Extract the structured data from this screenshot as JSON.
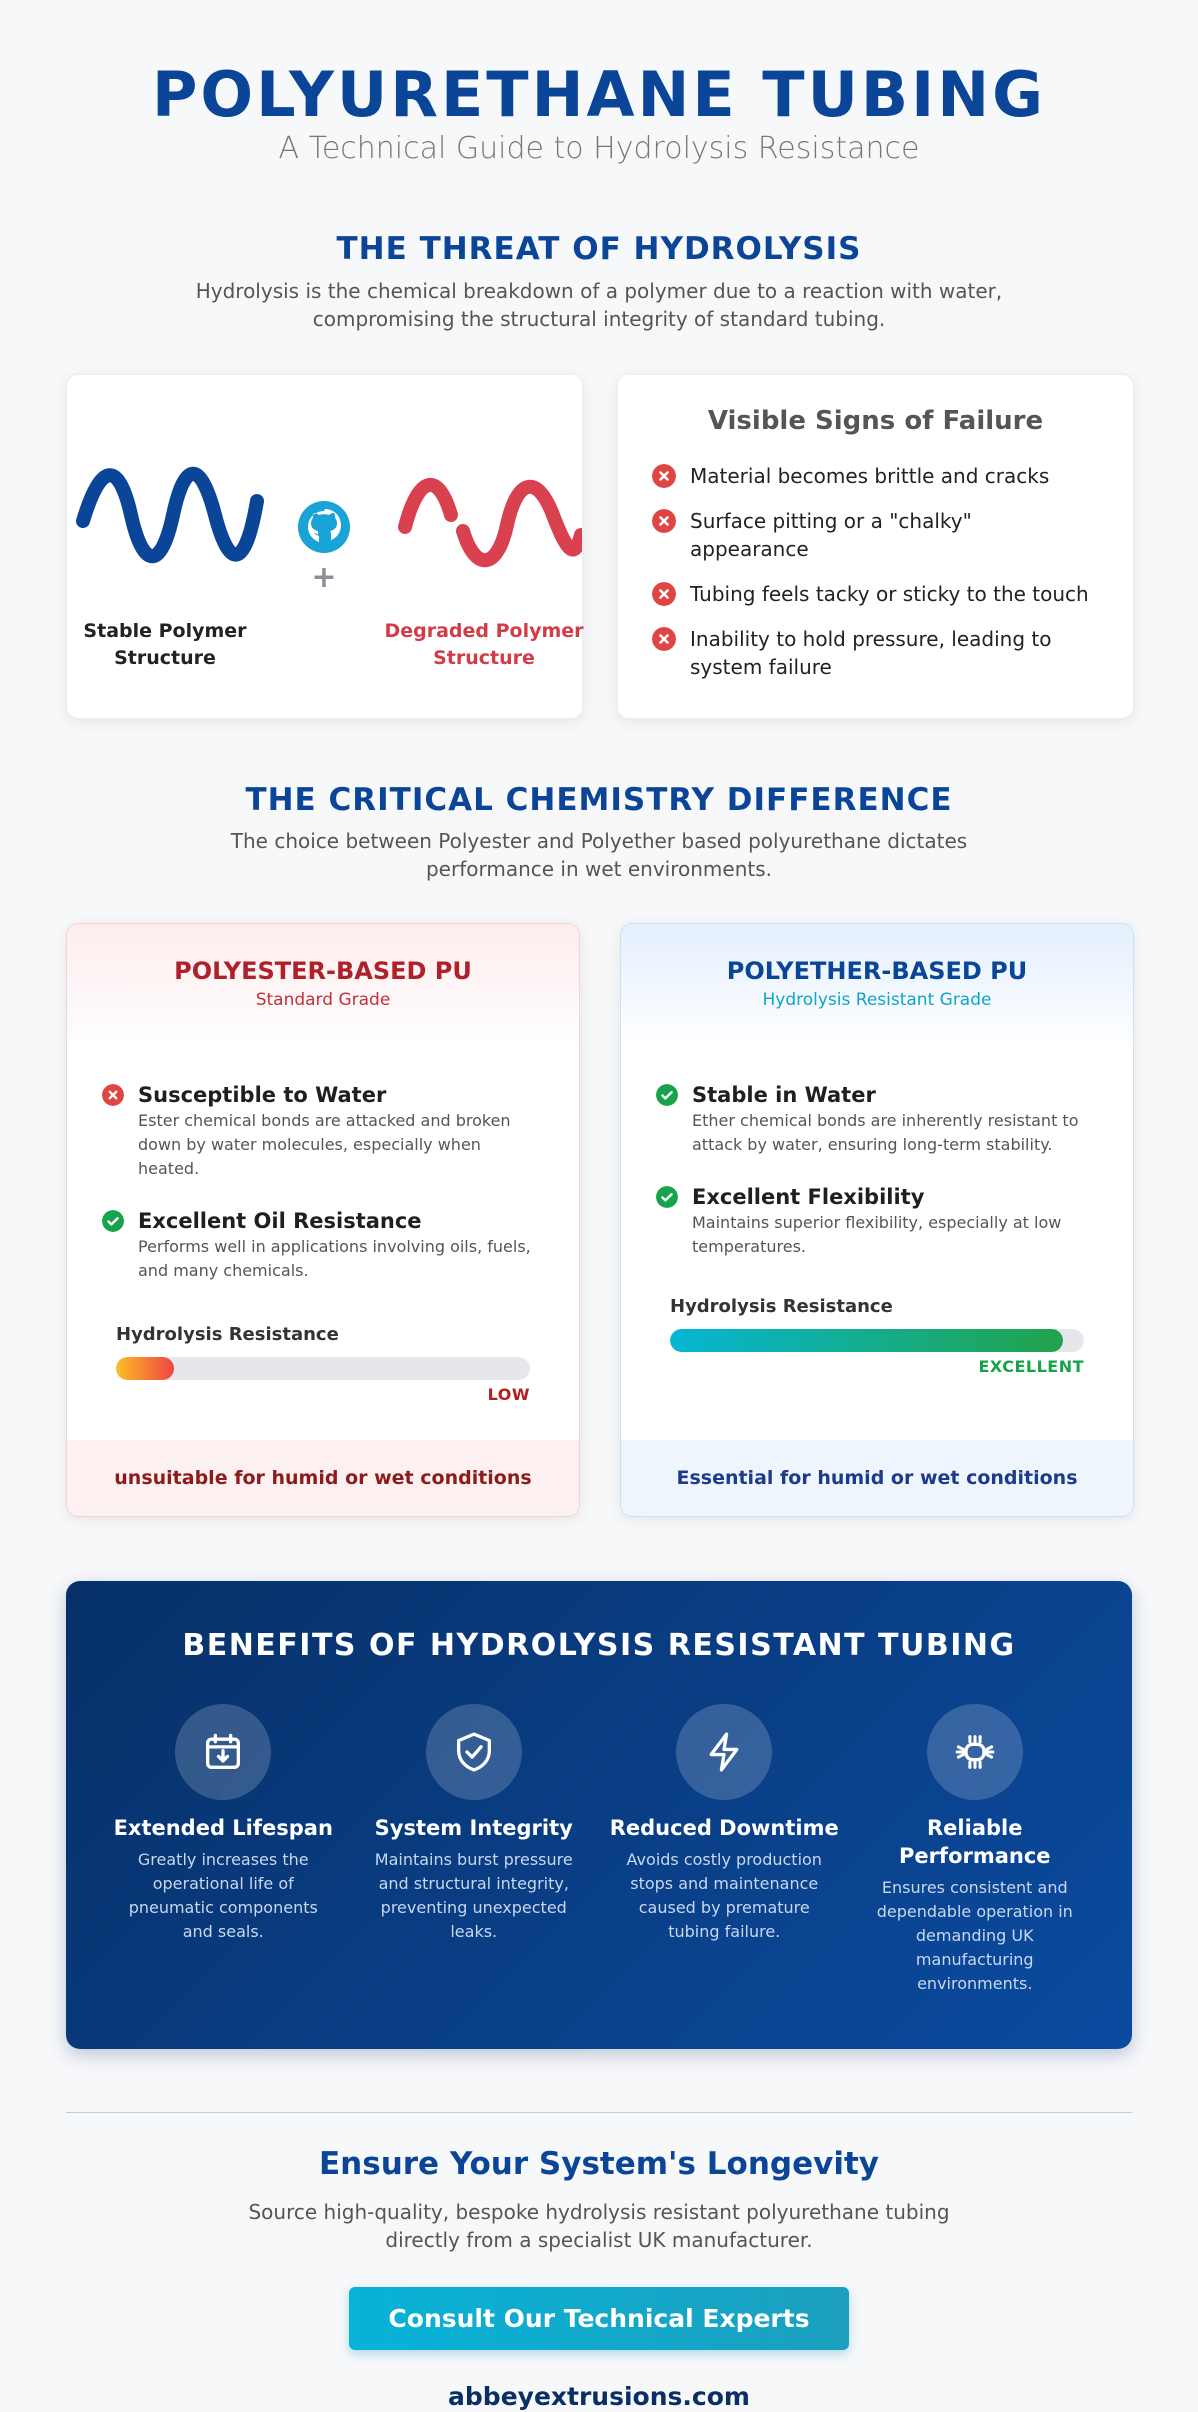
{
  "header": {
    "title": "POLYURETHANE TUBING",
    "subtitle": "A Technical Guide to Hydrolysis Resistance"
  },
  "threat": {
    "title": "THE THREAT OF HYDROLYSIS",
    "description": "Hydrolysis is the chemical breakdown of a polymer due to a reaction with water, compromising the structural integrity of standard tubing.",
    "diagram": {
      "stable_label": "Stable Polymer Structure",
      "plus": "+",
      "degraded_label": "Degraded Polymer Structure"
    },
    "signs": {
      "title": "Visible Signs of Failure",
      "items": [
        "Material becomes brittle and cracks",
        "Surface pitting or a \"chalky\" appearance",
        "Tubing feels tacky or sticky to the touch",
        "Inability to hold pressure, leading to system failure"
      ]
    }
  },
  "chemistry": {
    "title": "THE CRITICAL CHEMISTRY DIFFERENCE",
    "description": "The choice between Polyester and Polyether based polyurethane dictates performance in wet environments.",
    "cards": [
      {
        "title": "POLYESTER-BASED PU",
        "subtitle": "Standard Grade",
        "items": [
          {
            "status": "bad",
            "title": "Susceptible to Water",
            "text": "Ester chemical bonds are attacked and broken down by water molecules, especially when heated."
          },
          {
            "status": "good",
            "title": "Excellent Oil Resistance",
            "text": "Performs well in applications involving oils, fuels, and many chemicals."
          }
        ],
        "meter": {
          "label": "Hydrolysis Resistance",
          "level": 14,
          "rating": "LOW"
        },
        "footer": "unsuitable for humid or wet conditions"
      },
      {
        "title": "POLYETHER-BASED PU",
        "subtitle": "Hydrolysis Resistant Grade",
        "items": [
          {
            "status": "good",
            "title": "Stable in Water",
            "text": "Ether chemical bonds are inherently resistant to attack by water, ensuring long-term stability."
          },
          {
            "status": "good",
            "title": "Excellent Flexibility",
            "text": "Maintains superior flexibility, especially at low temperatures."
          }
        ],
        "meter": {
          "label": "Hydrolysis Resistance",
          "level": 95,
          "rating": "EXCELLENT"
        },
        "footer": "Essential for humid or wet conditions"
      }
    ]
  },
  "benefits": {
    "title": "BENEFITS OF HYDROLYSIS RESISTANT TUBING",
    "items": [
      {
        "title": "Extended Lifespan",
        "text": "Greatly increases the operational life of pneumatic components and seals."
      },
      {
        "title": "System Integrity",
        "text": "Maintains burst pressure and structural integrity, preventing unexpected leaks."
      },
      {
        "title": "Reduced Downtime",
        "text": "Avoids costly production stops and maintenance caused by premature tubing failure."
      },
      {
        "title": "Reliable Performance",
        "text": "Ensures consistent and dependable operation in demanding UK manufacturing environments."
      }
    ]
  },
  "cta": {
    "title": "Ensure Your System's Longevity",
    "text": "Source high-quality, bespoke hydrolysis resistant polyurethane tubing directly from a specialist UK manufacturer.",
    "button": "Consult Our Technical Experts",
    "website": "abbeyextrusions.com"
  }
}
